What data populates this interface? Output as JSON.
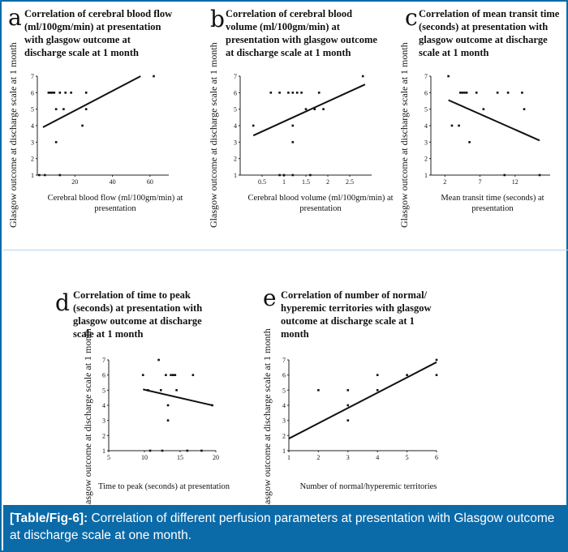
{
  "y_axis_label": "Glasgow outcome at discharge scale at 1 month",
  "caption": {
    "ref": "[Table/Fig-6]:",
    "text": " Correlation of different perfusion parameters at presentation with Glasgow outcome at discharge scale at one month."
  },
  "colors": {
    "caption_bg": "#0b6aa8",
    "caption_text": "#ffffff",
    "points": "#111111",
    "trendline": "#111111"
  },
  "panels": [
    {
      "letter": "a",
      "title_lines": [
        "Correlation of cerebral blood flow",
        "(ml/100gm/min) at presentation",
        "with glasgow outcome at",
        "discharge scale at 1 month"
      ],
      "xlabel_lines": [
        "Cerebral blood flow (ml/100gm/min) at",
        "presentation"
      ]
    },
    {
      "letter": "b",
      "title_lines": [
        "Correlation of cerebral blood",
        "volume (ml/100gm/min) at",
        "presentation with glasgow outcome",
        "at discharge scale at 1 month"
      ],
      "xlabel_lines": [
        "Cerebral blood volume (ml/100gm/min) at",
        "presentation"
      ]
    },
    {
      "letter": "c",
      "title_lines": [
        "Correlation of mean transit time",
        "(seconds) at presentation with",
        "glasgow outcome at discharge",
        "scale at 1 month"
      ],
      "xlabel_lines": [
        "Mean transit time (seconds) at",
        "presentation"
      ]
    },
    {
      "letter": "d",
      "title_lines": [
        "Correlation of time to peak",
        "(seconds) at presentation with",
        "glasgow outcome at discharge",
        "scale at 1 month"
      ],
      "xlabel_lines": [
        "Time to peak (seconds) at presentation"
      ]
    },
    {
      "letter": "e",
      "title_lines": [
        "Correlation of number of normal/",
        "hyperemic territories with glasgow",
        "outcome at discharge scale at 1",
        "month"
      ],
      "xlabel_lines": [
        "Number of normal/hyperemic territories"
      ]
    }
  ],
  "chart_data": [
    {
      "type": "scatter",
      "panel": "a",
      "xlim": [
        0,
        70
      ],
      "xticks": [
        "20",
        "40",
        "60"
      ],
      "xtick_values": [
        20,
        40,
        60
      ],
      "ylim": [
        1,
        7
      ],
      "yticks": [
        "1",
        "2",
        "3",
        "4",
        "5",
        "6",
        "7"
      ],
      "points": [
        [
          1,
          1
        ],
        [
          4,
          1
        ],
        [
          6,
          6
        ],
        [
          7,
          6
        ],
        [
          8,
          6
        ],
        [
          9,
          6
        ],
        [
          10,
          5
        ],
        [
          10,
          3
        ],
        [
          12,
          6
        ],
        [
          12,
          1
        ],
        [
          14,
          5
        ],
        [
          15,
          6
        ],
        [
          18,
          6
        ],
        [
          24,
          4
        ],
        [
          26,
          5
        ],
        [
          26,
          6
        ],
        [
          62,
          7
        ]
      ],
      "trendline": [
        [
          3,
          3.9
        ],
        [
          55,
          7
        ]
      ]
    },
    {
      "type": "scatter",
      "panel": "b",
      "xlim": [
        0,
        3
      ],
      "xticks": [
        "0.5",
        "1",
        "1.5",
        "2",
        "2.5"
      ],
      "xtick_values": [
        0.5,
        1,
        1.5,
        2,
        2.5
      ],
      "ylim": [
        1,
        7
      ],
      "yticks": [
        "1",
        "2",
        "3",
        "4",
        "5",
        "6",
        "7"
      ],
      "points": [
        [
          0.3,
          4
        ],
        [
          0.7,
          6
        ],
        [
          0.9,
          6
        ],
        [
          0.9,
          1
        ],
        [
          1.0,
          1
        ],
        [
          1.1,
          6
        ],
        [
          1.2,
          6
        ],
        [
          1.2,
          4
        ],
        [
          1.2,
          3
        ],
        [
          1.2,
          1
        ],
        [
          1.3,
          6
        ],
        [
          1.4,
          6
        ],
        [
          1.5,
          5
        ],
        [
          1.6,
          1
        ],
        [
          1.7,
          5
        ],
        [
          1.8,
          6
        ],
        [
          1.9,
          5
        ],
        [
          2.8,
          7
        ]
      ],
      "trendline": [
        [
          0.3,
          3.4
        ],
        [
          2.85,
          6.5
        ]
      ]
    },
    {
      "type": "scatter",
      "panel": "c",
      "xlim": [
        0,
        17
      ],
      "xticks": [
        "2",
        "7",
        "12"
      ],
      "xtick_values": [
        2,
        7,
        12
      ],
      "ylim": [
        1,
        7
      ],
      "yticks": [
        "1",
        "2",
        "3",
        "4",
        "5",
        "6",
        "7"
      ],
      "points": [
        [
          2.5,
          7
        ],
        [
          3,
          4
        ],
        [
          4,
          4
        ],
        [
          4.2,
          6
        ],
        [
          4.5,
          6
        ],
        [
          4.8,
          6
        ],
        [
          5.1,
          6
        ],
        [
          5.5,
          3
        ],
        [
          6.5,
          6
        ],
        [
          7.5,
          5
        ],
        [
          9.5,
          6
        ],
        [
          10.5,
          1
        ],
        [
          11,
          6
        ],
        [
          13,
          6
        ],
        [
          13.3,
          5
        ],
        [
          15.5,
          1
        ]
      ],
      "trendline": [
        [
          2.5,
          5.55
        ],
        [
          15.5,
          3.1
        ]
      ]
    },
    {
      "type": "scatter",
      "panel": "d",
      "xlim": [
        5,
        20
      ],
      "xticks": [
        "5",
        "10",
        "15",
        "20"
      ],
      "xtick_values": [
        5,
        10,
        15,
        20
      ],
      "ylim": [
        1,
        7
      ],
      "yticks": [
        "1",
        "2",
        "3",
        "4",
        "5",
        "6",
        "7"
      ],
      "points": [
        [
          9.8,
          6
        ],
        [
          10.5,
          5
        ],
        [
          10.8,
          1
        ],
        [
          12,
          7
        ],
        [
          12.3,
          5
        ],
        [
          12.5,
          1
        ],
        [
          13,
          6
        ],
        [
          13.3,
          4
        ],
        [
          13.3,
          3
        ],
        [
          13.7,
          6
        ],
        [
          14,
          6
        ],
        [
          14.3,
          6
        ],
        [
          14.5,
          5
        ],
        [
          16,
          1
        ],
        [
          16.8,
          6
        ],
        [
          18,
          1
        ],
        [
          19.5,
          4
        ]
      ],
      "trendline": [
        [
          9.8,
          5.05
        ],
        [
          19.5,
          4.0
        ]
      ]
    },
    {
      "type": "scatter",
      "panel": "e",
      "xlim": [
        1,
        6
      ],
      "xticks": [
        "1",
        "2",
        "3",
        "4",
        "5",
        "6"
      ],
      "xtick_values": [
        1,
        2,
        3,
        4,
        5,
        6
      ],
      "ylim": [
        1,
        7
      ],
      "yticks": [
        "1",
        "2",
        "3",
        "4",
        "5",
        "6",
        "7"
      ],
      "points": [
        [
          2,
          5
        ],
        [
          3,
          5
        ],
        [
          3,
          4
        ],
        [
          3,
          3
        ],
        [
          4,
          6
        ],
        [
          4,
          5
        ],
        [
          5,
          6
        ],
        [
          6,
          7
        ],
        [
          6,
          6
        ]
      ],
      "trendline": [
        [
          1,
          1.8
        ],
        [
          6,
          6.85
        ]
      ]
    }
  ]
}
